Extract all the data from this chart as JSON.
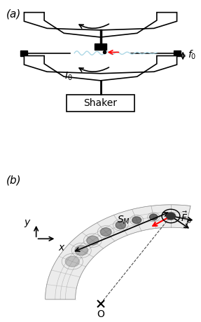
{
  "fig_width": 2.87,
  "fig_height": 4.59,
  "dpi": 100,
  "bg_color": "#ffffff",
  "panel_a_label": "(a)",
  "panel_b_label": "(b)",
  "shaker_label": "Shaker",
  "f0_label": "$f_0$",
  "I0_label": "$I_0$",
  "SM_label": "$S_M$",
  "Fp_label": "$\\vec{F}_p$",
  "x_label": "$x$",
  "y_label": "$y$",
  "O_label": "O"
}
